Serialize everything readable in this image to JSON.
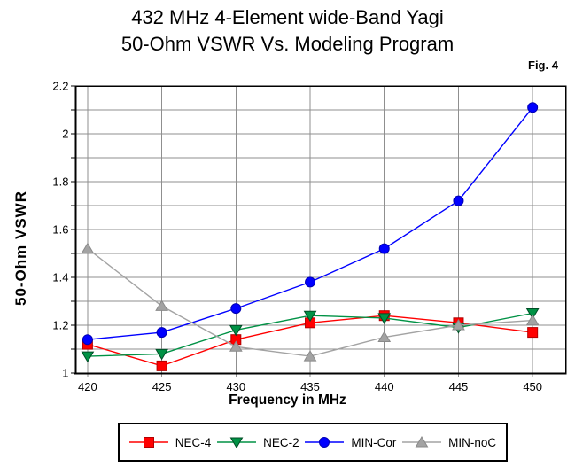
{
  "figure": {
    "title_line1": "432 MHz 4-Element wide-Band Yagi",
    "title_line2": "50-Ohm VSWR Vs. Modeling Program",
    "fig_label": "Fig. 4"
  },
  "chart_data": {
    "type": "line",
    "title": "432 MHz 4-Element wide-Band Yagi 50-Ohm VSWR Vs. Modeling Program",
    "xlabel": "Frequency in MHz",
    "ylabel": "50-Ohm VSWR",
    "x": [
      420,
      425,
      430,
      435,
      440,
      445,
      450
    ],
    "x_tick_labels": [
      "420",
      "425",
      "430",
      "435",
      "440",
      "445",
      "450"
    ],
    "y_tick_values": [
      1,
      1.2,
      1.4,
      1.6,
      1.8,
      2,
      2.2
    ],
    "y_tick_labels": [
      "1",
      "1.2",
      "1.4",
      "1.6",
      "1.8",
      "2",
      "2.2"
    ],
    "xlim": [
      419.2,
      452.2
    ],
    "ylim": [
      1.0,
      2.2
    ],
    "y_grid_step": 0.1,
    "grid": true,
    "legend_position": "bottom",
    "colors": {
      "grid": "#8f8f8f",
      "axis": "#000000",
      "background": "#ffffff"
    },
    "series": [
      {
        "name": "NEC-4",
        "color": "#ff0000",
        "edge": "#b30000",
        "marker": "square",
        "values": [
          1.12,
          1.03,
          1.14,
          1.21,
          1.24,
          1.21,
          1.17
        ]
      },
      {
        "name": "NEC-2",
        "color": "#009245",
        "edge": "#004d26",
        "marker": "triangle-down",
        "values": [
          1.07,
          1.08,
          1.18,
          1.24,
          1.23,
          1.19,
          1.25
        ]
      },
      {
        "name": "MIN-Cor",
        "color": "#0000ff",
        "edge": "#0000b3",
        "marker": "circle",
        "values": [
          1.14,
          1.17,
          1.27,
          1.38,
          1.52,
          1.72,
          2.11
        ]
      },
      {
        "name": "MIN-noC",
        "color": "#a3a3a3",
        "edge": "#8a8a8a",
        "marker": "triangle-up",
        "values": [
          1.52,
          1.28,
          1.11,
          1.07,
          1.15,
          1.2,
          1.22
        ]
      }
    ]
  }
}
